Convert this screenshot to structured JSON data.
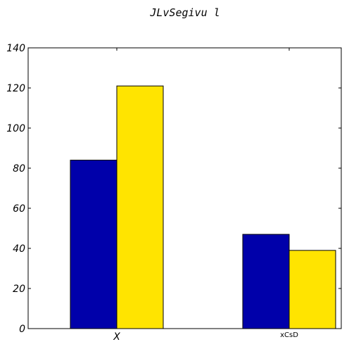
{
  "chart_data": {
    "type": "bar",
    "title": "JLvSegivu l",
    "xlabel": "",
    "ylabel": "",
    "categories": [
      "X",
      "xCsD"
    ],
    "series": [
      {
        "values": [
          84,
          47
        ],
        "color": "#0000aa"
      },
      {
        "values": [
          121,
          39
        ],
        "color": "#ffe400"
      }
    ],
    "ylim": [
      0,
      140
    ],
    "yticks": [
      0,
      20,
      40,
      60,
      80,
      100,
      120,
      140
    ],
    "grid": false,
    "legend": "none"
  }
}
